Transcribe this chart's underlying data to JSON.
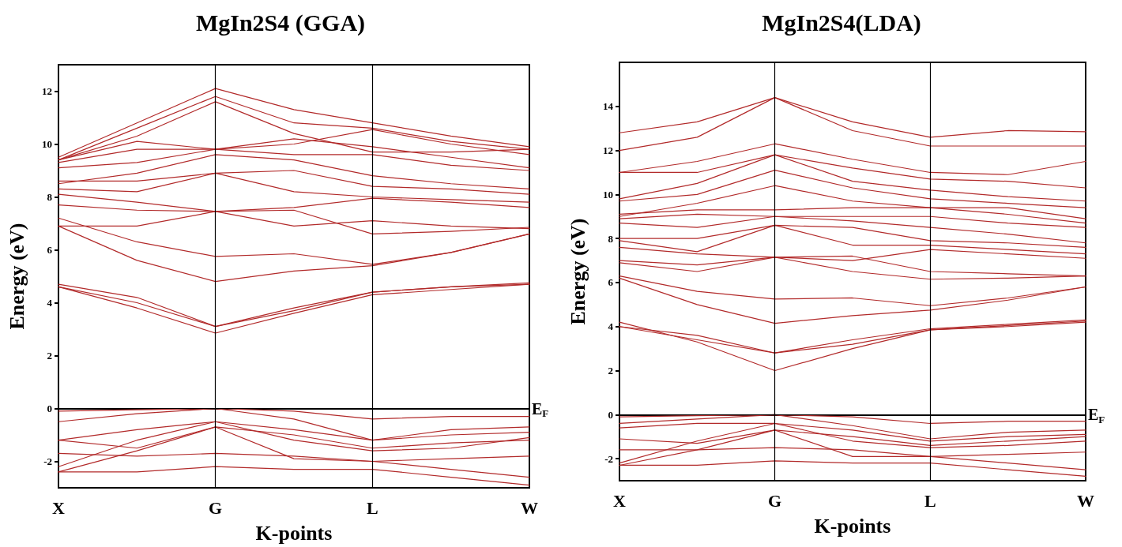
{
  "chart_data": [
    {
      "type": "line",
      "title": "MgIn2S4 (GGA)",
      "xlabel": "K-points",
      "ylabel": "Energy (eV)",
      "categories": [
        "X",
        null,
        "G",
        null,
        "L",
        null,
        "W"
      ],
      "ylim": [
        -3,
        13
      ],
      "yticks": [
        -2,
        0,
        2,
        4,
        6,
        8,
        10,
        12
      ],
      "marker": "none",
      "line_style": "solid",
      "ref_lines": [
        {
          "axis": "x",
          "value": "G",
          "label": null,
          "color": "#000000"
        },
        {
          "axis": "x",
          "value": "L",
          "label": null,
          "color": "#000000"
        },
        {
          "axis": "y",
          "value": 0,
          "label": "E$_{F}$",
          "color": "#000000"
        }
      ],
      "series": [
        {
          "color": "#b22a2a",
          "values": [
            -0.1,
            -0.05,
            0,
            -0.1,
            -0.4,
            -0.3,
            -0.3
          ]
        },
        {
          "color": "#b22a2a",
          "values": [
            -0.5,
            -0.2,
            0,
            -0.4,
            -1.2,
            -0.8,
            -0.7
          ]
        },
        {
          "color": "#b22a2a",
          "values": [
            -1.2,
            -0.8,
            -0.5,
            -0.8,
            -1.2,
            -1.0,
            -0.9
          ]
        },
        {
          "color": "#b22a2a",
          "values": [
            -1.2,
            -1.5,
            -0.7,
            -1.0,
            -1.5,
            -1.3,
            -1.2
          ]
        },
        {
          "color": "#b22a2a",
          "values": [
            -2.2,
            -1.2,
            -0.5,
            -1.2,
            -1.6,
            -1.5,
            -1.1
          ]
        },
        {
          "color": "#b22a2a",
          "values": [
            -2.4,
            -1.6,
            -0.7,
            -1.9,
            -2.0,
            -1.9,
            -1.8
          ]
        },
        {
          "color": "#b22a2a",
          "values": [
            -1.7,
            -1.8,
            -1.7,
            -1.8,
            -2.0,
            -2.3,
            -2.6
          ]
        },
        {
          "color": "#b22a2a",
          "values": [
            -2.4,
            -2.4,
            -2.2,
            -2.3,
            -2.3,
            -2.6,
            -2.9
          ]
        },
        {
          "color": "#b22a2a",
          "values": [
            4.6,
            3.8,
            2.85,
            3.6,
            4.3,
            4.5,
            4.7
          ]
        },
        {
          "color": "#b22a2a",
          "values": [
            4.6,
            4.0,
            3.1,
            3.8,
            4.4,
            4.6,
            4.7
          ]
        },
        {
          "color": "#b22a2a",
          "values": [
            4.7,
            4.2,
            3.1,
            3.7,
            4.4,
            4.6,
            4.75
          ]
        },
        {
          "color": "#b22a2a",
          "values": [
            6.9,
            5.6,
            4.8,
            5.2,
            5.4,
            5.9,
            6.6
          ]
        },
        {
          "color": "#b22a2a",
          "values": [
            7.2,
            6.3,
            5.75,
            5.85,
            5.45,
            5.9,
            6.6
          ]
        },
        {
          "color": "#b22a2a",
          "values": [
            6.9,
            6.9,
            7.45,
            7.5,
            6.6,
            6.7,
            6.85
          ]
        },
        {
          "color": "#b22a2a",
          "values": [
            7.7,
            7.5,
            7.45,
            6.9,
            7.1,
            6.9,
            6.8
          ]
        },
        {
          "color": "#b22a2a",
          "values": [
            8.1,
            7.8,
            7.45,
            7.6,
            7.95,
            7.8,
            7.6
          ]
        },
        {
          "color": "#b22a2a",
          "values": [
            8.3,
            8.2,
            8.9,
            8.2,
            8.0,
            7.9,
            7.8
          ]
        },
        {
          "color": "#b22a2a",
          "values": [
            8.6,
            8.6,
            8.9,
            9.0,
            8.4,
            8.3,
            8.1
          ]
        },
        {
          "color": "#b22a2a",
          "values": [
            8.5,
            8.9,
            9.6,
            9.4,
            8.8,
            8.5,
            8.3
          ]
        },
        {
          "color": "#b22a2a",
          "values": [
            9.1,
            9.3,
            9.8,
            9.6,
            9.6,
            9.2,
            9.0
          ]
        },
        {
          "color": "#b22a2a",
          "values": [
            9.3,
            9.8,
            9.8,
            10.2,
            9.9,
            9.5,
            9.1
          ]
        },
        {
          "color": "#b22a2a",
          "values": [
            9.4,
            10.1,
            9.8,
            10.0,
            10.55,
            10.0,
            9.6
          ]
        },
        {
          "color": "#b22a2a",
          "values": [
            9.4,
            10.3,
            11.6,
            10.4,
            9.7,
            9.7,
            9.8
          ]
        },
        {
          "color": "#b22a2a",
          "values": [
            9.4,
            10.6,
            11.8,
            10.8,
            10.6,
            10.1,
            9.8
          ]
        },
        {
          "color": "#b22a2a",
          "values": [
            9.5,
            10.8,
            12.1,
            11.3,
            10.8,
            10.3,
            9.9
          ]
        }
      ]
    },
    {
      "type": "line",
      "title": "MgIn2S4(LDA)",
      "xlabel": "K-points",
      "ylabel": "Energy (eV)",
      "categories": [
        "X",
        null,
        "G",
        null,
        "L",
        null,
        "W"
      ],
      "ylim": [
        -3,
        16
      ],
      "yticks": [
        -2,
        0,
        2,
        4,
        6,
        8,
        10,
        12,
        14
      ],
      "marker": "none",
      "line_style": "solid",
      "ref_lines": [
        {
          "axis": "x",
          "value": "G",
          "label": null,
          "color": "#000000"
        },
        {
          "axis": "x",
          "value": "L",
          "label": null,
          "color": "#000000"
        },
        {
          "axis": "y",
          "value": 0,
          "label": "E$_{F}$",
          "color": "#000000"
        }
      ],
      "series": [
        {
          "color": "#b22a2a",
          "values": [
            -0.1,
            -0.05,
            0,
            -0.1,
            -0.4,
            -0.3,
            -0.3
          ]
        },
        {
          "color": "#b22a2a",
          "values": [
            -0.4,
            -0.2,
            0,
            -0.5,
            -1.1,
            -0.8,
            -0.7
          ]
        },
        {
          "color": "#b22a2a",
          "values": [
            -0.6,
            -0.4,
            -0.4,
            -0.7,
            -1.2,
            -1.0,
            -0.9
          ]
        },
        {
          "color": "#b22a2a",
          "values": [
            -1.1,
            -1.3,
            -0.7,
            -1.0,
            -1.4,
            -1.2,
            -1.0
          ]
        },
        {
          "color": "#b22a2a",
          "values": [
            -2.2,
            -1.2,
            -0.4,
            -1.2,
            -1.5,
            -1.4,
            -1.2
          ]
        },
        {
          "color": "#b22a2a",
          "values": [
            -2.3,
            -1.6,
            -0.7,
            -1.9,
            -1.9,
            -1.8,
            -1.7
          ]
        },
        {
          "color": "#b22a2a",
          "values": [
            -1.6,
            -1.6,
            -1.5,
            -1.6,
            -1.9,
            -2.2,
            -2.5
          ]
        },
        {
          "color": "#b22a2a",
          "values": [
            -2.3,
            -2.3,
            -2.1,
            -2.2,
            -2.2,
            -2.5,
            -2.8
          ]
        },
        {
          "color": "#b22a2a",
          "values": [
            4.2,
            3.3,
            2.0,
            3.0,
            3.85,
            4.0,
            4.2
          ]
        },
        {
          "color": "#b22a2a",
          "values": [
            4.0,
            3.4,
            2.8,
            3.2,
            3.85,
            4.05,
            4.25
          ]
        },
        {
          "color": "#b22a2a",
          "values": [
            4.0,
            3.6,
            2.8,
            3.4,
            3.9,
            4.1,
            4.3
          ]
        },
        {
          "color": "#b22a2a",
          "values": [
            6.2,
            5.0,
            4.15,
            4.5,
            4.75,
            5.2,
            5.8
          ]
        },
        {
          "color": "#b22a2a",
          "values": [
            6.3,
            5.6,
            5.25,
            5.3,
            4.95,
            5.3,
            5.8
          ]
        },
        {
          "color": "#b22a2a",
          "values": [
            6.9,
            6.5,
            7.15,
            6.5,
            6.15,
            6.2,
            6.3
          ]
        },
        {
          "color": "#b22a2a",
          "values": [
            7.0,
            6.8,
            7.15,
            7.2,
            6.5,
            6.4,
            6.3
          ]
        },
        {
          "color": "#b22a2a",
          "values": [
            7.6,
            7.3,
            7.15,
            7.0,
            7.5,
            7.3,
            7.1
          ]
        },
        {
          "color": "#b22a2a",
          "values": [
            7.9,
            7.4,
            8.6,
            7.7,
            7.7,
            7.5,
            7.3
          ]
        },
        {
          "color": "#b22a2a",
          "values": [
            8.0,
            8.0,
            8.6,
            8.5,
            7.9,
            7.8,
            7.6
          ]
        },
        {
          "color": "#b22a2a",
          "values": [
            8.7,
            8.5,
            9.0,
            8.8,
            8.5,
            8.2,
            7.8
          ]
        },
        {
          "color": "#b22a2a",
          "values": [
            8.9,
            9.1,
            9.0,
            9.0,
            9.0,
            8.7,
            8.5
          ]
        },
        {
          "color": "#b22a2a",
          "values": [
            9.1,
            9.3,
            9.3,
            9.4,
            9.4,
            9.1,
            8.7
          ]
        },
        {
          "color": "#b22a2a",
          "values": [
            9.0,
            9.6,
            10.4,
            9.7,
            9.4,
            9.4,
            8.9
          ]
        },
        {
          "color": "#b22a2a",
          "values": [
            9.7,
            10.0,
            11.1,
            10.3,
            9.8,
            9.6,
            9.4
          ]
        },
        {
          "color": "#b22a2a",
          "values": [
            9.8,
            10.5,
            11.8,
            10.6,
            10.2,
            9.9,
            9.7
          ]
        },
        {
          "color": "#b22a2a",
          "values": [
            11.0,
            11.0,
            11.8,
            11.2,
            10.7,
            10.6,
            10.3
          ]
        },
        {
          "color": "#b22a2a",
          "values": [
            11.0,
            11.5,
            12.3,
            11.6,
            11.0,
            10.9,
            11.5
          ]
        },
        {
          "color": "#b22a2a",
          "values": [
            12.0,
            12.6,
            14.4,
            12.9,
            12.2,
            12.2,
            12.2
          ]
        },
        {
          "color": "#b22a2a",
          "values": [
            12.8,
            13.3,
            14.4,
            13.3,
            12.6,
            12.9,
            12.85
          ]
        }
      ]
    }
  ]
}
